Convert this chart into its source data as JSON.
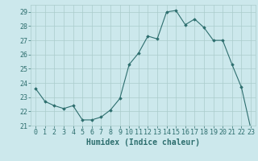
{
  "x": [
    0,
    1,
    2,
    3,
    4,
    5,
    6,
    7,
    8,
    9,
    10,
    11,
    12,
    13,
    14,
    15,
    16,
    17,
    18,
    19,
    20,
    21,
    22,
    23
  ],
  "y": [
    23.6,
    22.7,
    22.4,
    22.2,
    22.4,
    21.4,
    21.4,
    21.6,
    22.1,
    22.9,
    25.3,
    26.1,
    27.3,
    27.1,
    29.0,
    29.1,
    28.1,
    28.5,
    27.9,
    27.0,
    27.0,
    25.3,
    23.7,
    20.8
  ],
  "xlabel": "Humidex (Indice chaleur)",
  "xlim": [
    -0.5,
    23.5
  ],
  "ylim": [
    21.0,
    29.5
  ],
  "yticks": [
    21,
    22,
    23,
    24,
    25,
    26,
    27,
    28,
    29
  ],
  "xticks": [
    0,
    1,
    2,
    3,
    4,
    5,
    6,
    7,
    8,
    9,
    10,
    11,
    12,
    13,
    14,
    15,
    16,
    17,
    18,
    19,
    20,
    21,
    22,
    23
  ],
  "xtick_labels": [
    "0",
    "1",
    "2",
    "3",
    "4",
    "5",
    "6",
    "7",
    "8",
    "9",
    "10",
    "11",
    "12",
    "13",
    "14",
    "15",
    "16",
    "17",
    "18",
    "19",
    "20",
    "21",
    "22",
    "23"
  ],
  "line_color": "#2d6e6e",
  "marker": "D",
  "marker_size": 1.8,
  "bg_color": "#cce8ec",
  "grid_color": "#aacccc",
  "tick_color": "#2d6e6e",
  "label_color": "#2d6e6e",
  "xlabel_fontsize": 7,
  "tick_fontsize": 6
}
